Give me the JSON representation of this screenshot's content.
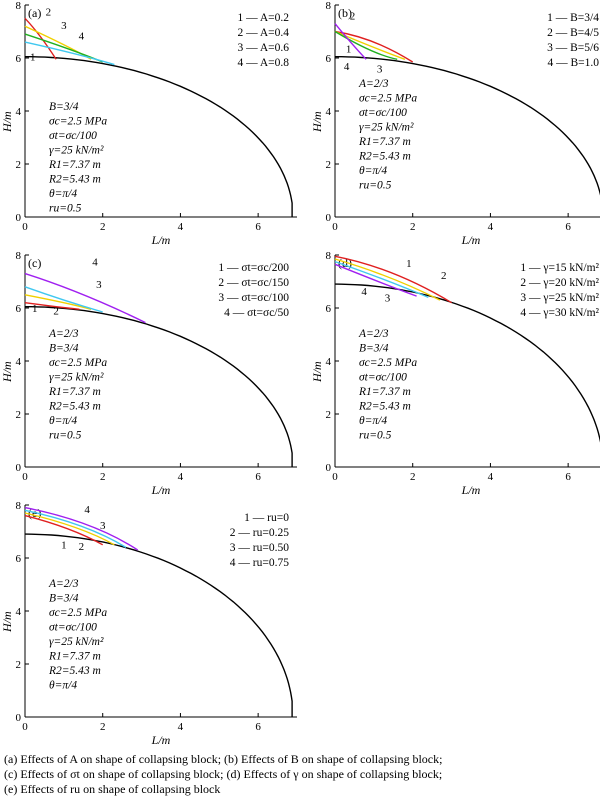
{
  "chart_data": [
    {
      "type": "line",
      "panel_label": "(a)",
      "xlabel": "L/m",
      "ylabel": "H/m",
      "xlim": [
        0,
        7
      ],
      "ylim": [
        0,
        8
      ],
      "xticks": [
        "0",
        "2",
        "4",
        "6"
      ],
      "yticks": [
        "0",
        "2",
        "4",
        "6",
        "8"
      ],
      "legend_position": "top-right",
      "legend": [
        "1 — A=0.2",
        "2 — A=0.4",
        "3 — A=0.6",
        "4 — A=0.8"
      ],
      "series": [
        {
          "name": "1",
          "color": "#e02020",
          "x": [
            0,
            0.4,
            0.8
          ],
          "y": [
            7.5,
            6.8,
            5.95
          ]
        },
        {
          "name": "2",
          "color": "#f0d000",
          "x": [
            0,
            1,
            1.7
          ],
          "y": [
            7.2,
            6.5,
            5.95
          ]
        },
        {
          "name": "3",
          "color": "#20b020",
          "x": [
            0,
            1.1,
            2.0
          ],
          "y": [
            6.9,
            6.35,
            5.85
          ]
        },
        {
          "name": "4",
          "color": "#40c8f0",
          "x": [
            0,
            1.3,
            2.3
          ],
          "y": [
            6.6,
            6.15,
            5.75
          ]
        }
      ],
      "series_labels": [
        {
          "text": "1",
          "x": 0.2,
          "y": 5.9
        },
        {
          "text": "2",
          "x": 0.6,
          "y": 7.6
        },
        {
          "text": "3",
          "x": 1.0,
          "y": 7.1
        },
        {
          "text": "4",
          "x": 1.45,
          "y": 6.7
        }
      ],
      "boundary": {
        "color": "#000000",
        "center": [
          0,
          0
        ],
        "radii": [
          6.9,
          6.05
        ],
        "theta_max_deg": 90,
        "from_deg": 5
      },
      "params": [
        "B=3/4",
        "σc=2.5 MPa",
        "σt=σc/100",
        "γ=25 kN/m²",
        "R1=7.37 m",
        "R2=5.43 m",
        "θ=π/4",
        "ru=0.5"
      ]
    },
    {
      "type": "line",
      "panel_label": "(b)",
      "xlabel": "L/m",
      "ylabel": "H/m",
      "xlim": [
        0,
        7
      ],
      "ylim": [
        0,
        8
      ],
      "xticks": [
        "0",
        "2",
        "4",
        "6"
      ],
      "yticks": [
        "0",
        "2",
        "4",
        "6",
        "8"
      ],
      "legend_position": "top-right",
      "legend": [
        "1 — B=3/4",
        "2 — B=4/5",
        "3 — B=5/6",
        "4 — B=1.0"
      ],
      "series": [
        {
          "name": "1",
          "color": "#e02020",
          "x": [
            0,
            1,
            2.0
          ],
          "y": [
            7.0,
            6.6,
            5.85
          ]
        },
        {
          "name": "2",
          "color": "#f0d000",
          "x": [
            0,
            1,
            1.8
          ],
          "y": [
            7.0,
            6.4,
            5.95
          ]
        },
        {
          "name": "3",
          "color": "#20b020",
          "x": [
            0,
            0.9,
            1.6
          ],
          "y": [
            7.0,
            6.3,
            5.95
          ]
        },
        {
          "name": "4",
          "color": "#a020f0",
          "x": [
            0,
            0.4,
            0.8
          ],
          "y": [
            7.3,
            6.6,
            5.95
          ]
        }
      ],
      "series_labels": [
        {
          "text": "2",
          "x": 0.45,
          "y": 7.45
        },
        {
          "text": "1",
          "x": 0.35,
          "y": 6.2
        },
        {
          "text": "4",
          "x": 0.3,
          "y": 5.55
        },
        {
          "text": "3",
          "x": 1.15,
          "y": 5.45
        }
      ],
      "boundary": {
        "color": "#000000",
        "center": [
          0,
          0
        ],
        "radii": [
          6.9,
          6.05
        ],
        "theta_max_deg": 90,
        "from_deg": 5
      },
      "params": [
        "A=2/3",
        "σc=2.5 MPa",
        "σt=σc/100",
        "γ=25 kN/m²",
        "R1=7.37 m",
        "R2=5.43 m",
        "θ=π/4",
        "ru=0.5"
      ]
    },
    {
      "type": "line",
      "panel_label": "(c)",
      "xlabel": "L/m",
      "ylabel": "H/m",
      "xlim": [
        0,
        7
      ],
      "ylim": [
        0,
        8
      ],
      "xticks": [
        "0",
        "2",
        "4",
        "6"
      ],
      "yticks": [
        "0",
        "2",
        "4",
        "6",
        "8"
      ],
      "legend_position": "top-right",
      "legend": [
        "1 — σt=σc/200",
        "2 — σt=σc/150",
        "3 — σt=σc/100",
        "4 — σt=σc/50"
      ],
      "series": [
        {
          "name": "1",
          "color": "#e02020",
          "x": [
            0,
            0.8,
            1.4
          ],
          "y": [
            6.2,
            6.05,
            5.95
          ]
        },
        {
          "name": "2",
          "color": "#f0d000",
          "x": [
            0,
            1,
            1.7
          ],
          "y": [
            6.5,
            6.2,
            5.95
          ]
        },
        {
          "name": "3",
          "color": "#40c8f0",
          "x": [
            0,
            1,
            2.0
          ],
          "y": [
            6.8,
            6.3,
            5.85
          ]
        },
        {
          "name": "4",
          "color": "#a020f0",
          "x": [
            0,
            1.5,
            3.1
          ],
          "y": [
            7.3,
            6.5,
            5.45
          ]
        }
      ],
      "series_labels": [
        {
          "text": "1",
          "x": 0.25,
          "y": 5.85
        },
        {
          "text": "2",
          "x": 0.8,
          "y": 5.75
        },
        {
          "text": "3",
          "x": 1.9,
          "y": 6.75
        },
        {
          "text": "4",
          "x": 1.8,
          "y": 7.6
        }
      ],
      "boundary": {
        "color": "#000000",
        "center": [
          0,
          0
        ],
        "radii": [
          6.9,
          6.05
        ],
        "theta_max_deg": 90,
        "from_deg": 5
      },
      "params": [
        "A=2/3",
        "B=3/4",
        "σc=2.5 MPa",
        "γ=25 kN/m²",
        "R1=7.37 m",
        "R2=5.43 m",
        "θ=π/4",
        "ru=0.5"
      ]
    },
    {
      "type": "line",
      "panel_label": "(d)",
      "xlabel": "L/m",
      "ylabel": "H/m",
      "xlim": [
        0,
        7
      ],
      "ylim": [
        0,
        8
      ],
      "xticks": [
        "0",
        "2",
        "4",
        "6"
      ],
      "yticks": [
        "0",
        "2",
        "4",
        "6",
        "8"
      ],
      "legend_position": "top-right",
      "legend": [
        "1 — γ=15 kN/m²",
        "2 — γ=20 kN/m²",
        "3 — γ=25 kN/m²",
        "4 — γ=30 kN/m²"
      ],
      "series": [
        {
          "name": "1",
          "color": "#e02020",
          "x": [
            0,
            1.5,
            3.0
          ],
          "y": [
            7.95,
            7.3,
            6.2
          ]
        },
        {
          "name": "2",
          "color": "#f0d000",
          "x": [
            0,
            1.4,
            2.7
          ],
          "y": [
            7.85,
            7.15,
            6.3
          ]
        },
        {
          "name": "3",
          "color": "#40c8f0",
          "x": [
            0,
            1.3,
            2.4
          ],
          "y": [
            7.75,
            7.05,
            6.4
          ]
        },
        {
          "name": "4",
          "color": "#a020f0",
          "x": [
            0,
            1.2,
            2.1
          ],
          "y": [
            7.65,
            6.95,
            6.45
          ]
        }
      ],
      "series_labels": [
        {
          "text": "1",
          "x": 1.9,
          "y": 7.55
        },
        {
          "text": "2",
          "x": 2.8,
          "y": 7.1
        },
        {
          "text": "3",
          "x": 1.35,
          "y": 6.25
        },
        {
          "text": "4",
          "x": 0.75,
          "y": 6.5
        }
      ],
      "boundary": {
        "color": "#000000",
        "center": [
          0,
          0
        ],
        "radii": [
          6.9,
          6.9
        ],
        "theta_max_deg": 90,
        "from_deg": 5
      },
      "params": [
        "A=2/3",
        "B=3/4",
        "σc=2.5 MPa",
        "σt=σc/100",
        "R1=7.37 m",
        "R2=5.43 m",
        "θ=π/4",
        "ru=0.5"
      ]
    },
    {
      "type": "line",
      "panel_label": "(e)",
      "xlabel": "L/m",
      "ylabel": "H/m",
      "xlim": [
        0,
        7
      ],
      "ylim": [
        0,
        8
      ],
      "xticks": [
        "0",
        "2",
        "4",
        "6"
      ],
      "yticks": [
        "0",
        "2",
        "4",
        "6",
        "8"
      ],
      "legend_position": "top-right",
      "legend": [
        "1 — ru=0",
        "2 — ru=0.25",
        "3 — ru=0.50",
        "4 — ru=0.75"
      ],
      "series": [
        {
          "name": "1",
          "color": "#e02020",
          "x": [
            0,
            1.1,
            2.0
          ],
          "y": [
            7.6,
            7.1,
            6.5
          ]
        },
        {
          "name": "2",
          "color": "#f0d000",
          "x": [
            0,
            1.3,
            2.3
          ],
          "y": [
            7.7,
            7.15,
            6.5
          ]
        },
        {
          "name": "3",
          "color": "#40c8f0",
          "x": [
            0,
            1.45,
            2.6
          ],
          "y": [
            7.8,
            7.2,
            6.4
          ]
        },
        {
          "name": "4",
          "color": "#a020f0",
          "x": [
            0,
            1.6,
            2.9
          ],
          "y": [
            7.9,
            7.25,
            6.3
          ]
        }
      ],
      "series_labels": [
        {
          "text": "1",
          "x": 1.0,
          "y": 6.35
        },
        {
          "text": "2",
          "x": 1.45,
          "y": 6.3
        },
        {
          "text": "3",
          "x": 2.0,
          "y": 7.1
        },
        {
          "text": "4",
          "x": 1.6,
          "y": 7.7
        }
      ],
      "boundary": {
        "color": "#000000",
        "center": [
          0,
          0
        ],
        "radii": [
          6.9,
          6.9
        ],
        "theta_max_deg": 90,
        "from_deg": 5
      },
      "params": [
        "A=2/3",
        "B=3/4",
        "σc=2.5 MPa",
        "σt=σc/100",
        "γ=25 kN/m²",
        "R1=7.37 m",
        "R2=5.43 m",
        "θ=π/4"
      ]
    }
  ],
  "captions": [
    "(a)  Effects  of  A  on  shape  of  collapsing block; (b) Effects of B on shape of collapsing block;",
    "(c)  Effects  of  σt  on shape of collapsing block; (d) Effects of γ on shape of collapsing block;",
    "(e) Effects of ru on shape of collapsing block"
  ]
}
